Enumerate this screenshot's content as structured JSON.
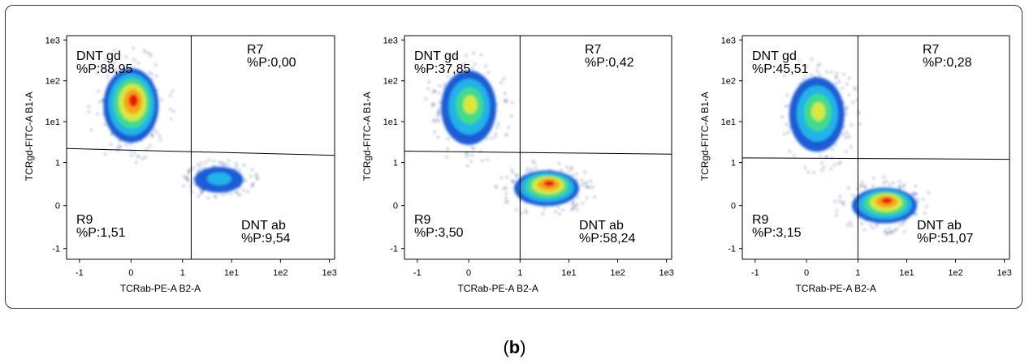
{
  "figure": {
    "caption_letter": "b"
  },
  "colors": {
    "density_low": "#1e5bd6",
    "density_mid1": "#22b3e8",
    "density_mid2": "#3fdc8a",
    "density_mid3": "#d9e83a",
    "density_mid4": "#f7a21b",
    "density_high": "#e8160c",
    "axis": "#000000",
    "gate_line": "#000000"
  },
  "chart_data": [
    {
      "type": "scatter",
      "subtype": "flow-cytometry-density",
      "xlabel": "TCRab-PE-A B2-A",
      "ylabel": "TCRgd-FITC-A B1-A",
      "x_ticks": [
        "-1",
        "0",
        "1",
        "1e1",
        "1e2",
        "1e3"
      ],
      "y_ticks": [
        "1e3",
        "1e2",
        "1e1",
        "1",
        "0",
        "-1"
      ],
      "gate_x": 1.5,
      "gate_y_left": 2.2,
      "gate_y_right": 1.5,
      "gates": [
        {
          "name": "DNT gd",
          "percent_label": "%P:88,95"
        },
        {
          "name": "R7",
          "percent_label": "%P:0,00"
        },
        {
          "name": "R9",
          "percent_label": "%P:1,51"
        },
        {
          "name": "DNT ab",
          "percent_label": "%P:9,54"
        }
      ],
      "populations": [
        {
          "x": 0.0,
          "y": 25,
          "level": "high"
        },
        {
          "x": 5.5,
          "y": 0.6,
          "level": "low"
        }
      ]
    },
    {
      "type": "scatter",
      "subtype": "flow-cytometry-density",
      "xlabel": "TCRab-PE-A B2-A",
      "ylabel": "TCRgd-FITC-A B1-A",
      "x_ticks": [
        "-1",
        "0",
        "1",
        "1e1",
        "1e2",
        "1e3"
      ],
      "y_ticks": [
        "1e3",
        "1e2",
        "1e1",
        "1",
        "0",
        "-1"
      ],
      "gate_x": 1.0,
      "gate_y_left": 1.9,
      "gate_y_right": 1.6,
      "gates": [
        {
          "name": "DNT gd",
          "percent_label": "%P:37,85"
        },
        {
          "name": "R7",
          "percent_label": "%P:0,42"
        },
        {
          "name": "R9",
          "percent_label": "%P:3,50"
        },
        {
          "name": "DNT ab",
          "percent_label": "%P:58,24"
        }
      ],
      "populations": [
        {
          "x": 0.0,
          "y": 22,
          "level": "mid"
        },
        {
          "x": 3.5,
          "y": 0.4,
          "level": "high"
        }
      ]
    },
    {
      "type": "scatter",
      "subtype": "flow-cytometry-density",
      "xlabel": "TCRab-PE-A B2-A",
      "ylabel": "TCRgd-FITC-A B1-A",
      "x_ticks": [
        "-1",
        "0",
        "1",
        "1e1",
        "1e2",
        "1e3"
      ],
      "y_ticks": [
        "1e3",
        "1e2",
        "1e1",
        "1",
        "0",
        "-1"
      ],
      "gate_x": 1.0,
      "gate_y_left": 1.3,
      "gate_y_right": 1.2,
      "gates": [
        {
          "name": "DNT gd",
          "percent_label": "%P:45,51"
        },
        {
          "name": "R7",
          "percent_label": "%P:0,28"
        },
        {
          "name": "R9",
          "percent_label": "%P:3,15"
        },
        {
          "name": "DNT ab",
          "percent_label": "%P:51,07"
        }
      ],
      "populations": [
        {
          "x": 0.2,
          "y": 15,
          "level": "mid"
        },
        {
          "x": 3.5,
          "y": 0.0,
          "level": "high"
        }
      ]
    }
  ]
}
